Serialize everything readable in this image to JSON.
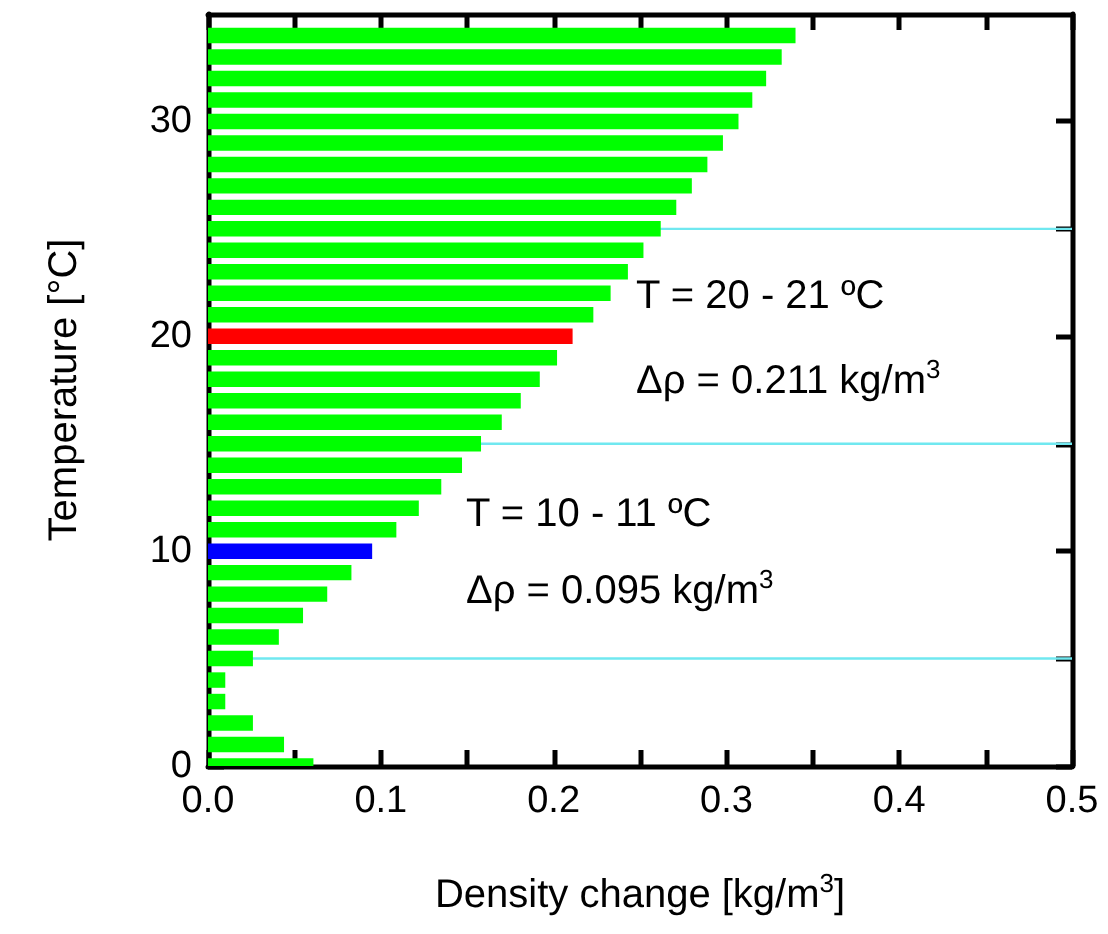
{
  "chart_data": {
    "type": "bar",
    "orientation": "horizontal",
    "xlabel": "Density change [kg/m$^{3}$]",
    "ylabel": "Temperature [°C]",
    "x": [
      0,
      1,
      2,
      3,
      4,
      5,
      6,
      7,
      8,
      9,
      10,
      11,
      12,
      13,
      14,
      15,
      16,
      17,
      18,
      19,
      20,
      21,
      22,
      23,
      24,
      25,
      26,
      27,
      28,
      29,
      30,
      31,
      32,
      33,
      34
    ],
    "values": [
      0.061,
      0.044,
      0.026,
      0.01,
      0.01,
      0.026,
      0.041,
      0.055,
      0.069,
      0.083,
      0.095,
      0.109,
      0.122,
      0.135,
      0.147,
      0.158,
      0.17,
      0.181,
      0.192,
      0.202,
      0.211,
      0.223,
      0.233,
      0.243,
      0.252,
      0.262,
      0.271,
      0.28,
      0.289,
      0.298,
      0.307,
      0.315,
      0.323,
      0.332,
      0.34
    ],
    "colors": [
      "#00ff00",
      "#00ff00",
      "#00ff00",
      "#00ff00",
      "#00ff00",
      "#00ff00",
      "#00ff00",
      "#00ff00",
      "#00ff00",
      "#00ff00",
      "#0000ff",
      "#00ff00",
      "#00ff00",
      "#00ff00",
      "#00ff00",
      "#00ff00",
      "#00ff00",
      "#00ff00",
      "#00ff00",
      "#00ff00",
      "#ff0000",
      "#00ff00",
      "#00ff00",
      "#00ff00",
      "#00ff00",
      "#00ff00",
      "#00ff00",
      "#00ff00",
      "#00ff00",
      "#00ff00",
      "#00ff00",
      "#00ff00",
      "#00ff00",
      "#00ff00",
      "#00ff00"
    ],
    "xlim": [
      0,
      0.5
    ],
    "xticks": [
      {
        "value": 0,
        "label": "0.0"
      },
      {
        "value": 0.05,
        "label": null
      },
      {
        "value": 0.1,
        "label": "0.1"
      },
      {
        "value": 0.15,
        "label": null
      },
      {
        "value": 0.2,
        "label": "0.2"
      },
      {
        "value": 0.25,
        "label": null
      },
      {
        "value": 0.3,
        "label": "0.3"
      },
      {
        "value": 0.35,
        "label": null
      },
      {
        "value": 0.4,
        "label": "0.4"
      },
      {
        "value": 0.45,
        "label": null
      },
      {
        "value": 0.5,
        "label": "0.5"
      }
    ],
    "ylim": [
      0,
      35
    ],
    "yticks": [
      0,
      {
        "value": 5,
        "label": null
      },
      10,
      {
        "value": 15,
        "label": null
      },
      20,
      {
        "value": 25,
        "label": null
      },
      30
    ],
    "ref_lines": [
      {
        "axis": "y",
        "value": 5,
        "color": "#70e8f0"
      },
      {
        "axis": "y",
        "value": 15,
        "color": "#70e8f0"
      },
      {
        "axis": "y",
        "value": 25,
        "color": "#70e8f0"
      }
    ],
    "annotations": [
      "T = 20 - 21 ºC",
      "Δρ = 0.211 kg/m$^{3}$",
      "T = 10 - 11 ºC",
      "Δρ = 0.095 kg/m$^{3}$"
    ],
    "grid": false
  }
}
